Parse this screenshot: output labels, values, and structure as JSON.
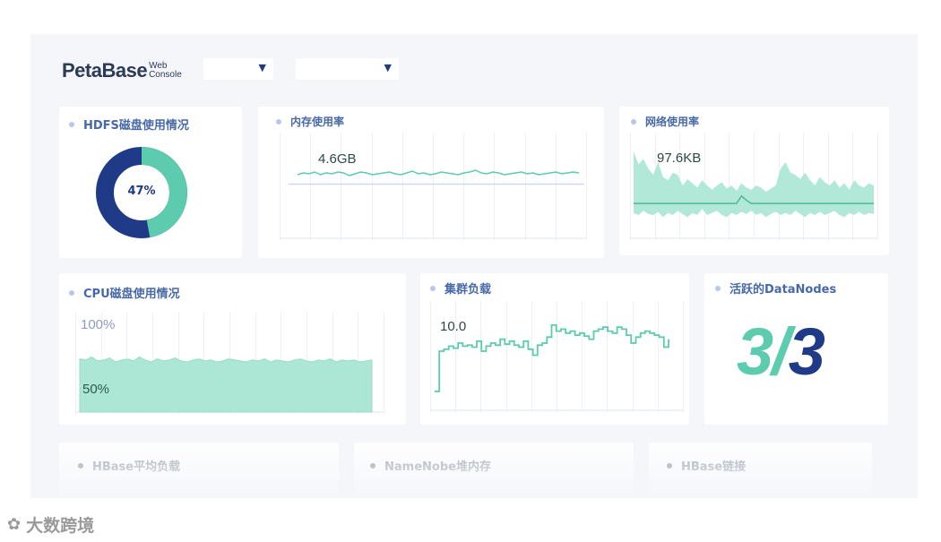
{
  "header": {
    "logo_main": "PetaBase",
    "logo_sub_top": "Web",
    "logo_sub_bottom": "Console",
    "selects": [
      {
        "value": ""
      },
      {
        "value": ""
      }
    ],
    "dropdown_icon": "▼"
  },
  "hdfs": {
    "title": "HDFS磁盘使用情况",
    "percent_label": "47%",
    "used_fraction": 0.47,
    "colors": {
      "used": "#5ccbae",
      "free": "#1f3a86"
    }
  },
  "memory": {
    "title": "内存使用率",
    "value": "4.6GB",
    "series": [
      0.53,
      0.55,
      0.54,
      0.56,
      0.53,
      0.55,
      0.54,
      0.56,
      0.55,
      0.52,
      0.54,
      0.56,
      0.55,
      0.53,
      0.54,
      0.55,
      0.56,
      0.54,
      0.53,
      0.55,
      0.57,
      0.54,
      0.55,
      0.53,
      0.54,
      0.56,
      0.55,
      0.54,
      0.53,
      0.55,
      0.56,
      0.58,
      0.55,
      0.54,
      0.56,
      0.55,
      0.53,
      0.54,
      0.55,
      0.56,
      0.54,
      0.55,
      0.53,
      0.54,
      0.55,
      0.56,
      0.54,
      0.55,
      0.56,
      0.55
    ],
    "baseline": [
      0.5,
      0.5,
      0.5,
      0.5,
      0.5,
      0.5,
      0.5,
      0.5,
      0.5,
      0.5,
      0.5,
      0.5,
      0.5,
      0.5,
      0.5,
      0.5,
      0.5,
      0.5,
      0.5,
      0.5,
      0.5,
      0.5,
      0.5,
      0.5,
      0.5,
      0.5,
      0.5,
      0.5,
      0.5,
      0.5,
      0.5,
      0.5,
      0.5,
      0.5,
      0.5,
      0.5,
      0.5,
      0.5,
      0.5,
      0.5,
      0.5,
      0.5,
      0.5,
      0.5,
      0.5,
      0.5,
      0.5,
      0.5,
      0.5,
      0.5
    ]
  },
  "network": {
    "title": "网络使用率",
    "value": "97.6KB",
    "upper": [
      0.82,
      0.7,
      0.75,
      0.66,
      0.6,
      0.72,
      0.58,
      0.55,
      0.62,
      0.6,
      0.5,
      0.56,
      0.52,
      0.48,
      0.55,
      0.5,
      0.46,
      0.5,
      0.53,
      0.47,
      0.5,
      0.45,
      0.52,
      0.48,
      0.46,
      0.5,
      0.48,
      0.44,
      0.47,
      0.5,
      0.66,
      0.72,
      0.62,
      0.6,
      0.56,
      0.62,
      0.55,
      0.5,
      0.58,
      0.53,
      0.5,
      0.55,
      0.48,
      0.52,
      0.46,
      0.55,
      0.5,
      0.48,
      0.52,
      0.5
    ],
    "lower": [
      0.24,
      0.22,
      0.26,
      0.23,
      0.22,
      0.25,
      0.2,
      0.24,
      0.22,
      0.26,
      0.23,
      0.2,
      0.24,
      0.22,
      0.28,
      0.22,
      0.24,
      0.26,
      0.22,
      0.2,
      0.24,
      0.22,
      0.25,
      0.23,
      0.26,
      0.22,
      0.24,
      0.2,
      0.23,
      0.25,
      0.22,
      0.24,
      0.22,
      0.26,
      0.23,
      0.2,
      0.24,
      0.22,
      0.25,
      0.22,
      0.24,
      0.26,
      0.22,
      0.2,
      0.24,
      0.22,
      0.25,
      0.22,
      0.24,
      0.23
    ],
    "line": [
      0.33,
      0.33,
      0.33,
      0.33,
      0.33,
      0.33,
      0.33,
      0.33,
      0.33,
      0.33,
      0.33,
      0.33,
      0.33,
      0.33,
      0.33,
      0.33,
      0.33,
      0.33,
      0.33,
      0.33,
      0.33,
      0.33,
      0.4,
      0.36,
      0.33,
      0.33,
      0.33,
      0.33,
      0.33,
      0.33,
      0.33,
      0.33,
      0.33,
      0.33,
      0.33,
      0.33,
      0.33,
      0.33,
      0.33,
      0.33,
      0.33,
      0.33,
      0.33,
      0.33,
      0.33,
      0.33,
      0.33,
      0.33,
      0.33,
      0.33
    ]
  },
  "cpu": {
    "title": "CPU磁盘使用情况",
    "label_top": "100%",
    "label_bottom": "50%",
    "series": [
      0.53,
      0.52,
      0.55,
      0.51,
      0.52,
      0.54,
      0.5,
      0.52,
      0.53,
      0.51,
      0.55,
      0.52,
      0.5,
      0.53,
      0.51,
      0.52,
      0.54,
      0.51,
      0.5,
      0.52,
      0.53,
      0.51,
      0.52,
      0.5,
      0.51,
      0.53,
      0.52,
      0.51,
      0.5,
      0.52,
      0.51,
      0.53,
      0.5,
      0.52,
      0.51,
      0.5,
      0.52,
      0.53,
      0.51,
      0.5,
      0.52,
      0.51,
      0.53,
      0.5,
      0.52,
      0.51,
      0.52,
      0.5,
      0.51,
      0.52
    ]
  },
  "cluster": {
    "title": "集群负载",
    "value": "10.0",
    "series": [
      0.1,
      0.5,
      0.52,
      0.55,
      0.53,
      0.58,
      0.55,
      0.56,
      0.54,
      0.6,
      0.5,
      0.55,
      0.58,
      0.56,
      0.62,
      0.57,
      0.6,
      0.56,
      0.54,
      0.6,
      0.52,
      0.46,
      0.56,
      0.58,
      0.64,
      0.76,
      0.7,
      0.72,
      0.68,
      0.7,
      0.66,
      0.68,
      0.65,
      0.62,
      0.7,
      0.72,
      0.74,
      0.7,
      0.68,
      0.74,
      0.72,
      0.66,
      0.58,
      0.64,
      0.68,
      0.7,
      0.68,
      0.66,
      0.64,
      0.54,
      0.62
    ]
  },
  "datanodes": {
    "title": "活跃的DataNodes",
    "active": "3",
    "slash": "/",
    "total": "3"
  },
  "bottom": {
    "hbase_load": "HBase平均负载",
    "namenode_heap": "NameNobe堆内存",
    "hbase_links": "HBase链接"
  },
  "watermark": {
    "icon": "✿",
    "text": "大数跨境"
  }
}
